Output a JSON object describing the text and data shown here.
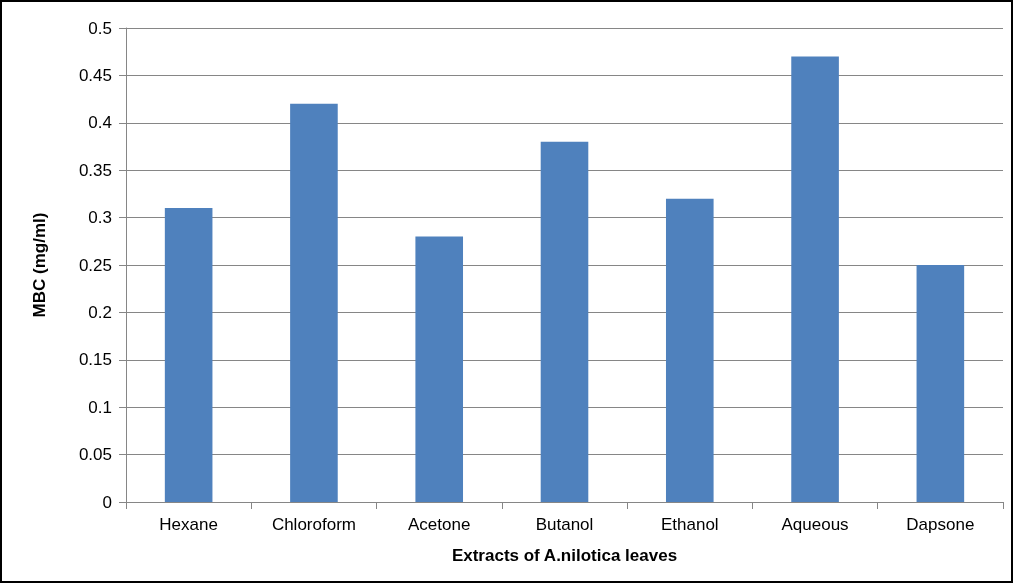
{
  "chart_data": {
    "type": "bar",
    "xlabel": "Extracts of A.nilotica leaves",
    "ylabel": "MBC (mg/ml)",
    "categories": [
      "Hexane",
      "Chloroform",
      "Acetone",
      "Butanol",
      "Ethanol",
      "Aqueous",
      "Dapsone"
    ],
    "values": [
      0.31,
      0.42,
      0.28,
      0.38,
      0.32,
      0.47,
      0.25
    ],
    "color": "#4f81bd",
    "ylim": [
      0,
      0.5
    ],
    "yticks": [
      0,
      0.05,
      0.1,
      0.15,
      0.2,
      0.25,
      0.3,
      0.35,
      0.4,
      0.45,
      0.5
    ],
    "grid": "y"
  }
}
